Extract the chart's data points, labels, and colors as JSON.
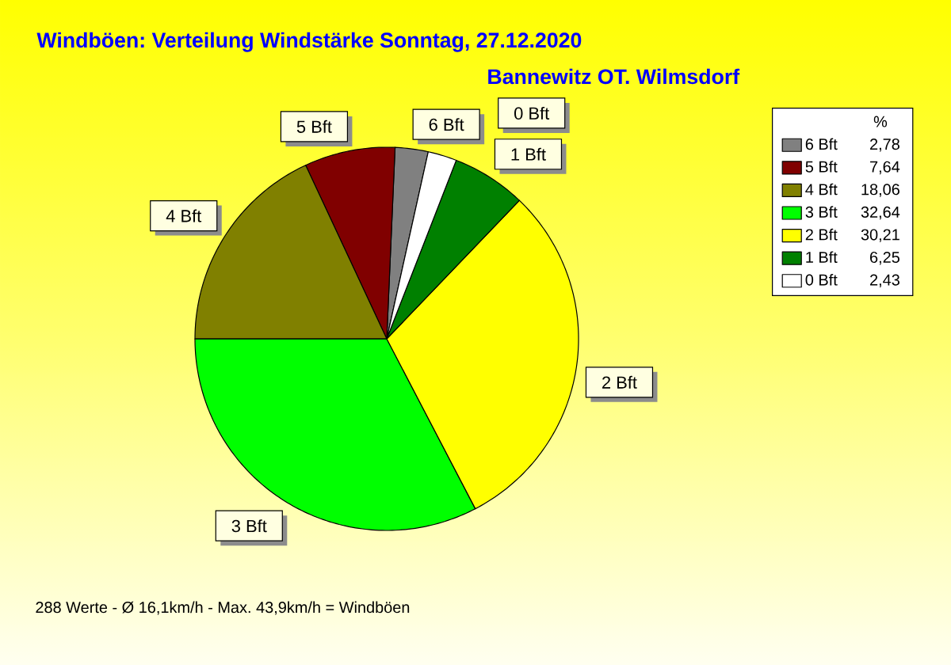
{
  "chart_data": {
    "type": "pie",
    "title": "Windböen: Verteilung Windstärke  Sonntag, 27.12.2020",
    "subtitle": "Bannewitz OT. Wilmsdorf",
    "categories": [
      "6 Bft",
      "5 Bft",
      "4 Bft",
      "3 Bft",
      "2 Bft",
      "1 Bft",
      "0 Bft"
    ],
    "values": [
      2.78,
      7.64,
      18.06,
      32.64,
      30.21,
      6.25,
      2.43
    ],
    "colors": [
      "#808080",
      "#800000",
      "#808000",
      "#00ff00",
      "#ffff00",
      "#008000",
      "#ffffff"
    ],
    "value_labels": [
      "2,78",
      "7,64",
      "18,06",
      "32,64",
      "30,21",
      "6,25",
      "2,43"
    ],
    "legend_title": "%",
    "legend": "top right",
    "annotations": [
      "288 Werte   -   Ø 16,1km/h  -  Max. 43,9km/h = Windböen"
    ]
  }
}
